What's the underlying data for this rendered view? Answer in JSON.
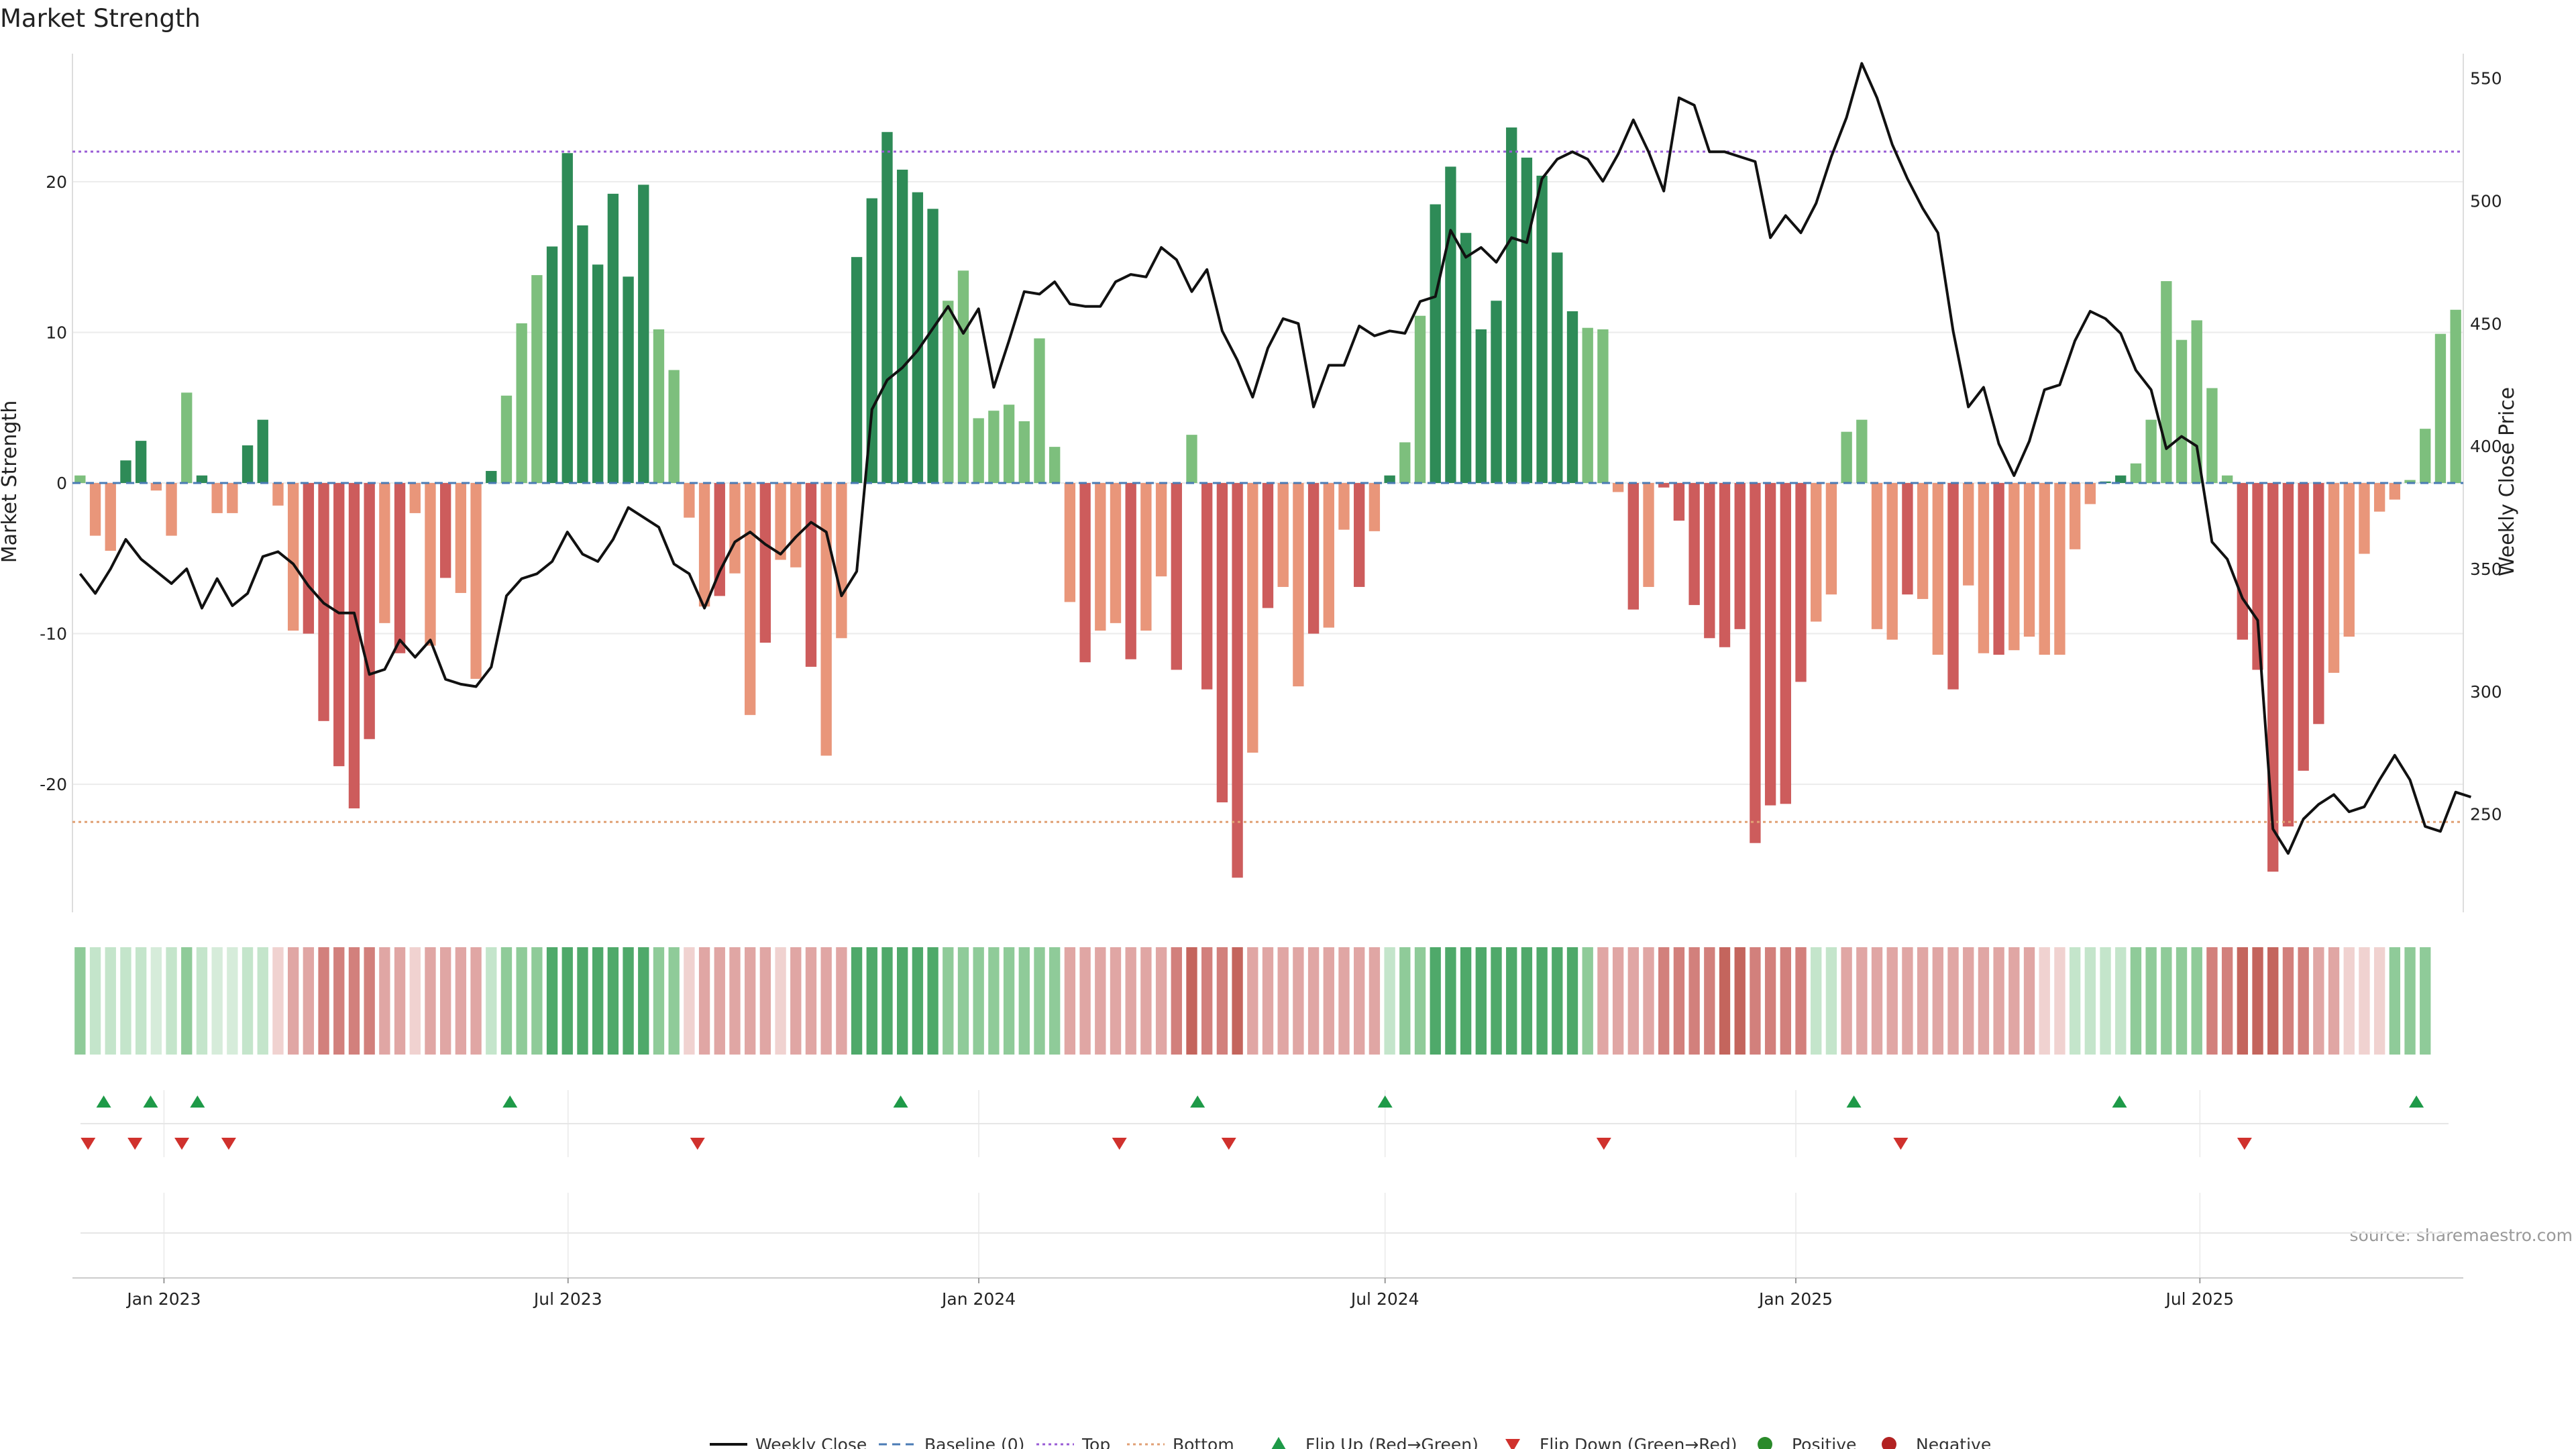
{
  "chart_data": {
    "type": "bar",
    "title": "Market Strength",
    "ylabel_left": "Market Strength",
    "ylabel_right": "Weekly Close Price",
    "left_ylim": [
      -28.5,
      28.5
    ],
    "left_ticks": [
      -20,
      -10,
      0,
      10,
      20
    ],
    "right_ylim": [
      210,
      560
    ],
    "right_ticks": [
      250,
      300,
      350,
      400,
      450,
      500,
      550
    ],
    "x_start": "2022-11-21",
    "x_end": "2025-10-27",
    "x_ticks": [
      "Jan 2023",
      "Jul 2023",
      "Jan 2024",
      "Jul 2024",
      "Jan 2025",
      "Jul 2025"
    ],
    "x_tick_dates": [
      "2023-01-01",
      "2023-07-01",
      "2024-01-01",
      "2024-07-01",
      "2025-01-01",
      "2025-07-01"
    ],
    "top_line": 22,
    "bottom_line": -22.5,
    "strength": [
      0.5,
      -3.5,
      -4.5,
      1.5,
      2.8,
      -0.5,
      -3.5,
      6,
      0.5,
      -2,
      -2,
      2.5,
      4.2,
      -1.5,
      -9.8,
      -10,
      -15.8,
      -18.8,
      -21.6,
      -17,
      -9.3,
      -11.3,
      -2,
      -10.8,
      -6.3,
      -7.3,
      -13,
      0.8,
      5.8,
      10.6,
      13.8,
      15.7,
      21.9,
      17.1,
      14.5,
      19.2,
      13.7,
      19.8,
      10.2,
      7.5,
      -2.3,
      -8.2,
      -7.5,
      -6,
      -15.4,
      -10.6,
      -5.1,
      -5.6,
      -12.2,
      -18.1,
      -10.3,
      15,
      18.9,
      23.3,
      20.8,
      19.3,
      18.2,
      12.1,
      14.1,
      4.3,
      4.8,
      5.2,
      4.1,
      9.6,
      2.4,
      -7.9,
      -11.9,
      -9.8,
      -9.3,
      -11.7,
      -9.8,
      -6.2,
      -12.4,
      3.2,
      -13.7,
      -21.2,
      -26.2,
      -17.9,
      -8.3,
      -6.9,
      -13.5,
      -10,
      -9.6,
      -3.1,
      -6.9,
      -3.2,
      0.5,
      2.7,
      11.1,
      18.5,
      21,
      16.6,
      10.2,
      12.1,
      23.6,
      21.6,
      20.4,
      15.3,
      11.4,
      10.3,
      10.2,
      -0.6,
      -8.4,
      -6.9,
      -0.3,
      -2.5,
      -8.1,
      -10.3,
      -10.9,
      -9.7,
      -23.9,
      -21.4,
      -21.3,
      -13.2,
      -9.2,
      -7.4,
      3.4,
      4.2,
      -9.7,
      -10.4,
      -7.4,
      -7.7,
      -11.4,
      -13.7,
      -6.8,
      -11.3,
      -11.4,
      -11.1,
      -10.2,
      -11.4,
      -11.4,
      -4.4,
      -1.4,
      0.1,
      0.5,
      1.3,
      4.2,
      13.4,
      9.5,
      10.8,
      6.3,
      0.5,
      -10.4,
      -12.4,
      -25.8,
      -22.8,
      -19.1,
      -16,
      -12.6,
      -10.2,
      -4.7,
      -1.9,
      -1.1,
      0.2,
      3.6,
      9.9,
      11.5
    ],
    "weekly_close": [
      348,
      340,
      350,
      362,
      354,
      349,
      344,
      350,
      334,
      346,
      335,
      340,
      355,
      357,
      352,
      343,
      336,
      332,
      332,
      307,
      309,
      321,
      314,
      321,
      305,
      303,
      302,
      310,
      339,
      346,
      348,
      353,
      365,
      356,
      353,
      362,
      375,
      371,
      367,
      352,
      348,
      334,
      349,
      361,
      365,
      360,
      356,
      363,
      369,
      365,
      339,
      349,
      415,
      427,
      432,
      439,
      448,
      457,
      446,
      456,
      424,
      443,
      463,
      462,
      467,
      458,
      457,
      457,
      467,
      470,
      469,
      481,
      476,
      463,
      472,
      447,
      435,
      420,
      440,
      452,
      450,
      416,
      433,
      433,
      449,
      445,
      447,
      446,
      459,
      461,
      488,
      477,
      481,
      475,
      485,
      483,
      509,
      517,
      520,
      517,
      508,
      519,
      533,
      520,
      504,
      542,
      539,
      520,
      520,
      518,
      516,
      485,
      494,
      487,
      499,
      518,
      534,
      556,
      542,
      523,
      509,
      497,
      487,
      447,
      416,
      424,
      401,
      388,
      402,
      423,
      425,
      443,
      455,
      452,
      446,
      431,
      423,
      399,
      404,
      400,
      361,
      354,
      338,
      329,
      244,
      234,
      248,
      254,
      258,
      251,
      253,
      264,
      274,
      264,
      245,
      243,
      259,
      257
    ],
    "signal_grade": [
      2,
      1,
      1,
      1,
      1,
      0,
      1,
      2,
      1,
      0,
      0,
      1,
      1,
      -1,
      -2,
      -2,
      -3,
      -3,
      -3,
      -3,
      -2,
      -2,
      -1,
      -2,
      -2,
      -2,
      -2,
      1,
      2,
      2,
      2,
      3,
      3,
      3,
      3,
      3,
      3,
      3,
      2,
      2,
      -1,
      -2,
      -2,
      -2,
      -2,
      -2,
      -1,
      -2,
      -2,
      -2,
      -2,
      3,
      3,
      3,
      3,
      3,
      3,
      2,
      2,
      2,
      2,
      2,
      2,
      2,
      2,
      -2,
      -2,
      -2,
      -2,
      -2,
      -2,
      -2,
      -3,
      -4,
      -3,
      -3,
      -4,
      -2,
      -2,
      -2,
      -2,
      -2,
      -2,
      -2,
      -2,
      -2,
      1,
      2,
      2,
      3,
      3,
      3,
      3,
      3,
      3,
      3,
      3,
      3,
      3,
      2,
      -2,
      -2,
      -2,
      -2,
      -3,
      -3,
      -3,
      -3,
      -4,
      -4,
      -3,
      -3,
      -3,
      -3,
      1,
      1,
      -2,
      -2,
      -2,
      -2,
      -2,
      -2,
      -2,
      -2,
      -2,
      -2,
      -2,
      -2,
      -2,
      -1,
      -1,
      1,
      1,
      1,
      1,
      2,
      2,
      2,
      2,
      2,
      -3,
      -3,
      -4,
      -4,
      -4,
      -3,
      -3,
      -2,
      -2,
      -1,
      -1,
      -1,
      2,
      2,
      2
    ],
    "flip_up": [
      "2022-12-05",
      "2022-12-26",
      "2023-01-16",
      "2023-06-05",
      "2023-11-27",
      "2024-04-08",
      "2024-07-01",
      "2025-01-27",
      "2025-05-26",
      "2025-10-06"
    ],
    "flip_down": [
      "2022-11-28",
      "2022-12-19",
      "2023-01-09",
      "2023-01-30",
      "2023-08-28",
      "2024-03-04",
      "2024-04-22",
      "2024-10-07",
      "2025-02-17",
      "2025-07-21"
    ],
    "source": "source: sharemaestro.com",
    "legend": [
      {
        "label": "Weekly Close",
        "kind": "solid-line",
        "color": "#111111"
      },
      {
        "label": "Baseline (0)",
        "kind": "dashed-line",
        "color": "#4a7bb5"
      },
      {
        "label": "Top",
        "kind": "dotted-line",
        "color": "#9a5cd6"
      },
      {
        "label": "Bottom",
        "kind": "dotted-line",
        "color": "#e0a074"
      },
      {
        "label": "Flip Up (Red→Green)",
        "kind": "triangle-up",
        "color": "#1e9a48"
      },
      {
        "label": "Flip Down (Green→Red)",
        "kind": "triangle-down",
        "color": "#d0312d"
      },
      {
        "label": "Positive",
        "kind": "dot",
        "color": "#2a8a2a"
      },
      {
        "label": "Negative",
        "kind": "dot",
        "color": "#b22222"
      }
    ],
    "colors": {
      "strong_green": "#2e8b57",
      "light_green": "#7dbf7d",
      "strong_red": "#cd5c5c",
      "light_red": "#e9967a",
      "price_line": "#111111",
      "top_line": "#9a5cd6",
      "bottom_line": "#e0a074",
      "baseline": "#4a7bb5"
    }
  }
}
